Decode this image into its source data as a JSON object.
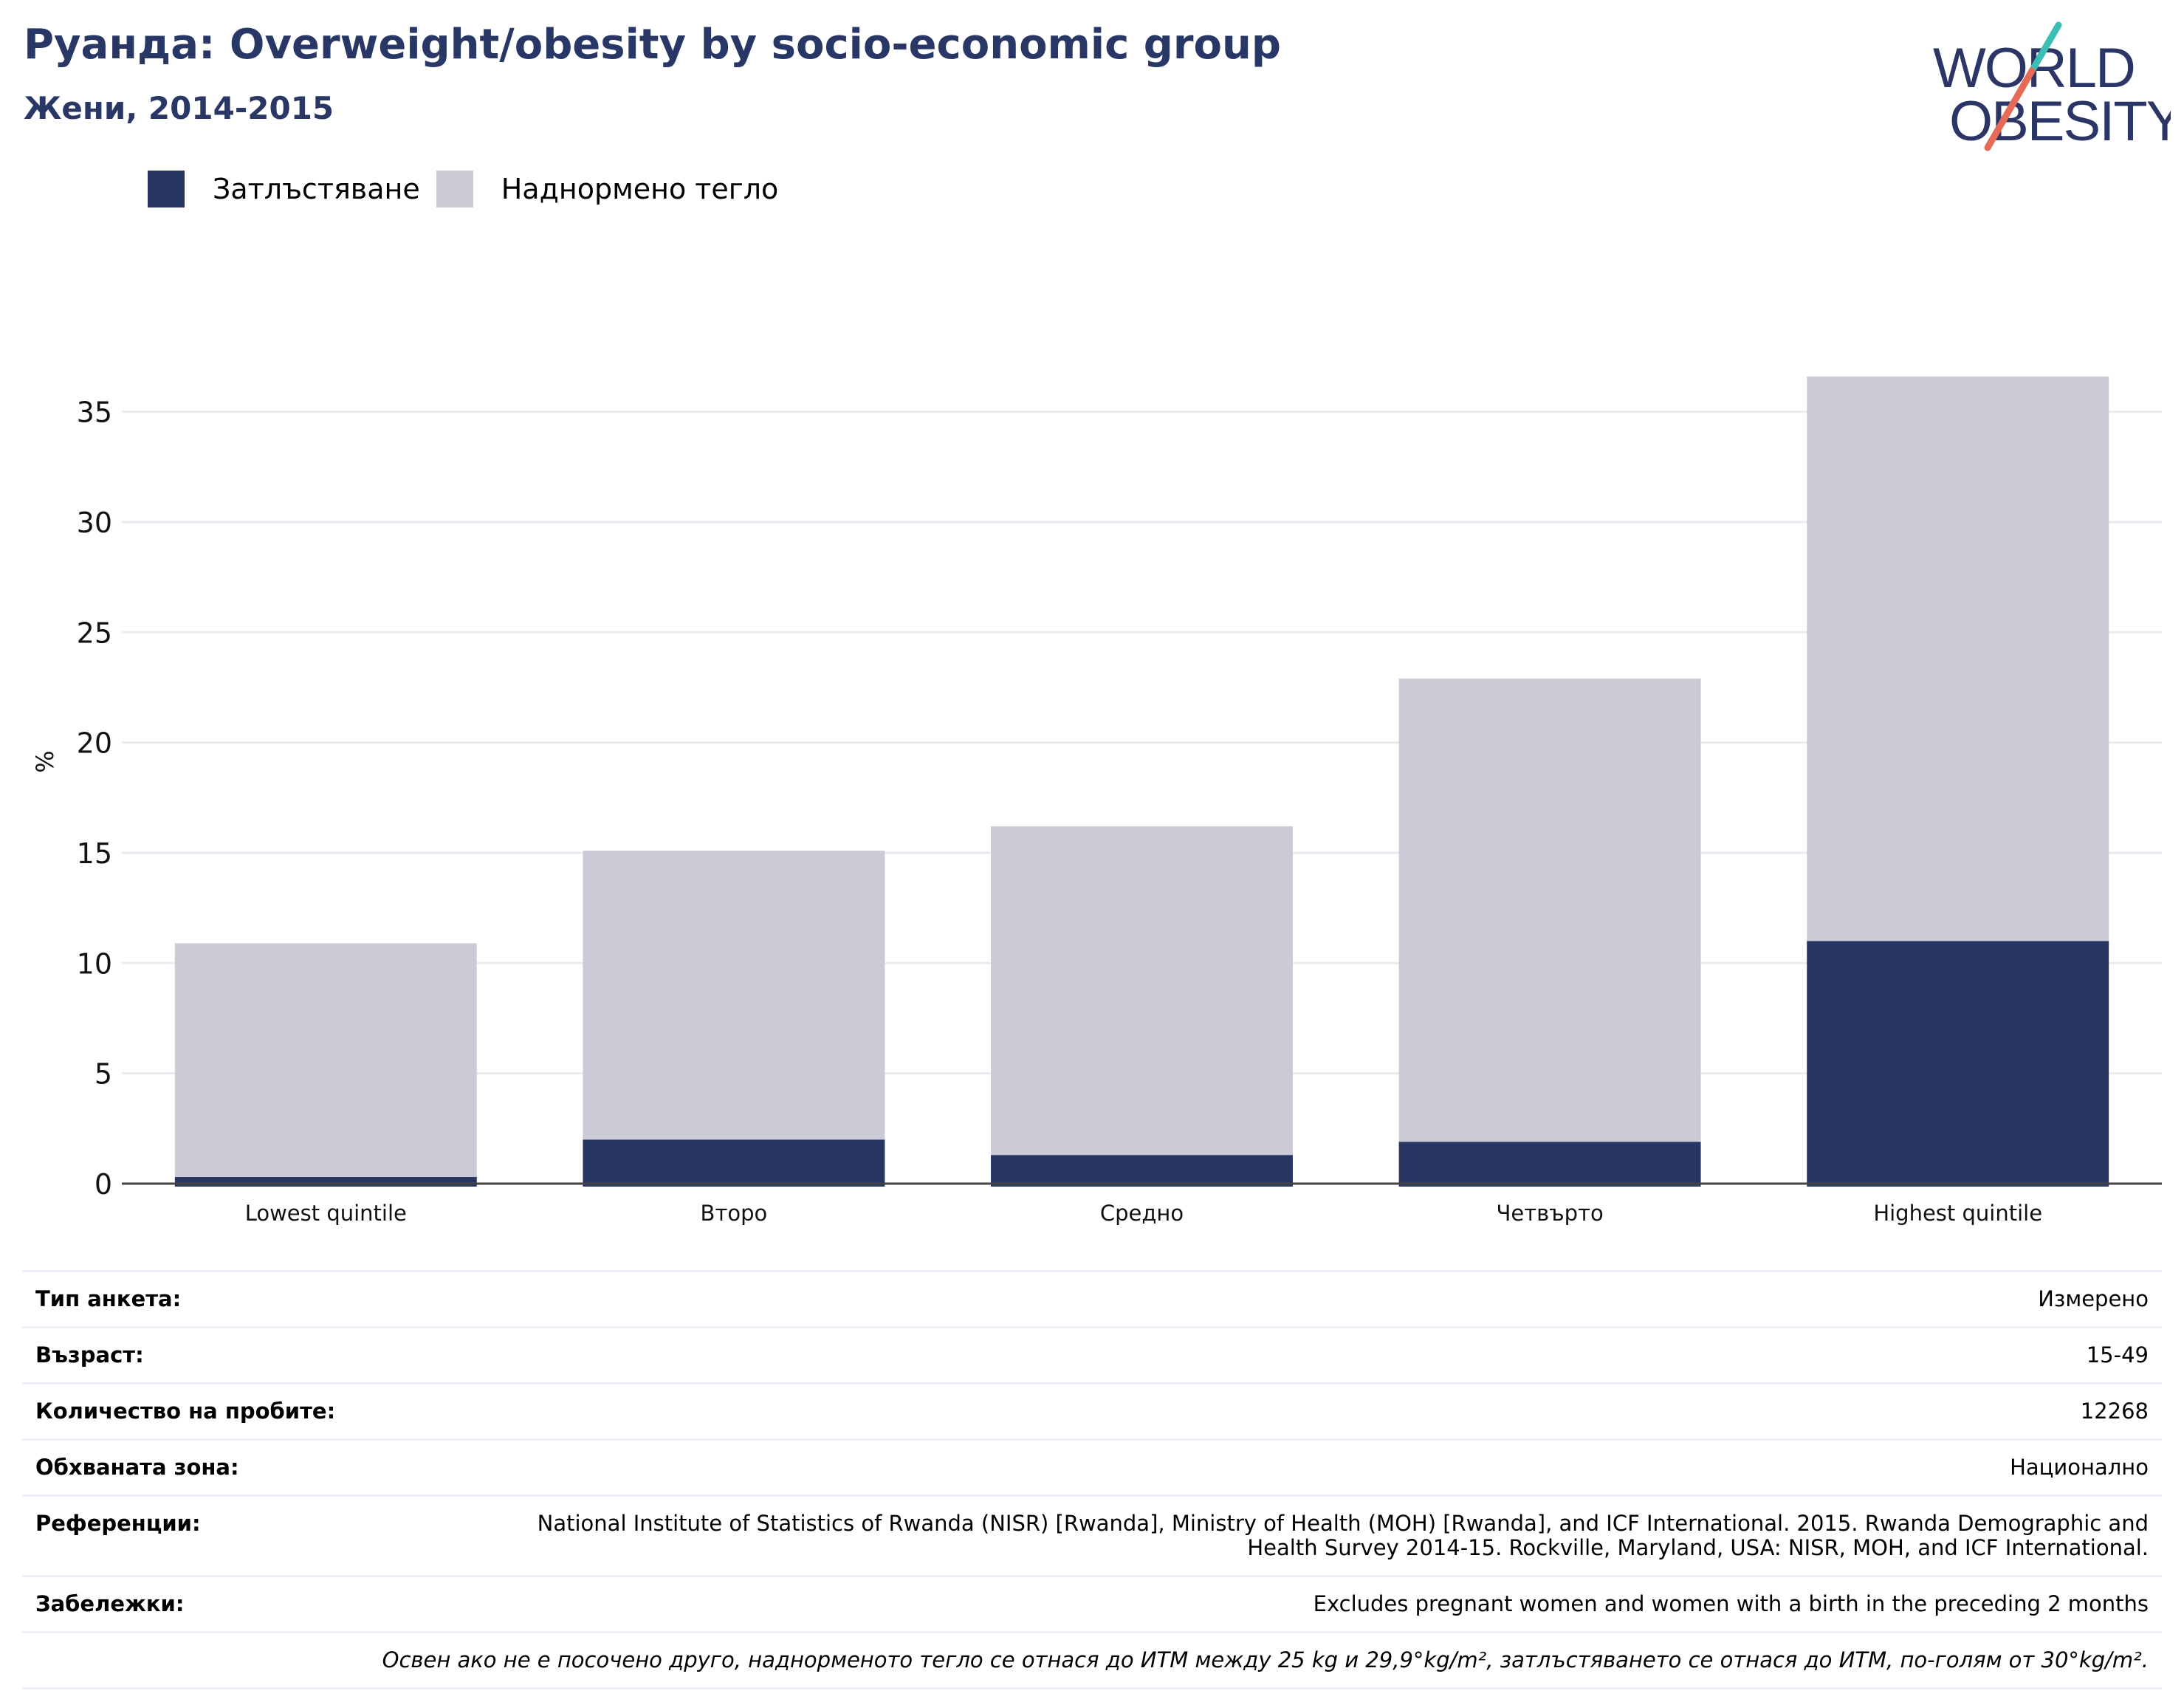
{
  "header": {
    "title": "Руанда: Overweight/obesity by socio-economic group",
    "subtitle": "Жени, 2014-2015"
  },
  "logo": {
    "line1": "WORLD",
    "line2": "OBESITY",
    "icon": "world-obesity-logo"
  },
  "colors": {
    "obesity": "#283563",
    "overweight": "#cacbd7",
    "title": "#283766",
    "grid": "#e9ebf0",
    "logo_teal": "#3bbfb5",
    "logo_red": "#e56b57"
  },
  "legend": {
    "items": [
      {
        "label": "Затлъстяване",
        "color": "#283563"
      },
      {
        "label": "Наднормено тегло",
        "color": "#cacbd7"
      }
    ]
  },
  "chart_data": {
    "type": "bar",
    "stacked": true,
    "categories": [
      "Lowest quintile",
      "Второ",
      "Средно",
      "Четвърто",
      "Highest quintile"
    ],
    "series": [
      {
        "name": "Затлъстяване",
        "values": [
          0.3,
          2.0,
          1.3,
          1.9,
          11.0
        ]
      },
      {
        "name": "Наднормено тегло",
        "values": [
          10.6,
          13.1,
          14.9,
          21.0,
          25.6
        ]
      }
    ],
    "totals": [
      10.9,
      15.1,
      16.2,
      22.9,
      36.6
    ],
    "ylabel": "%",
    "ylim": [
      0,
      38
    ],
    "yticks": [
      0,
      5,
      10,
      15,
      20,
      25,
      30,
      35
    ],
    "grid": true,
    "legend_position": "top-left"
  },
  "meta": {
    "rows": [
      {
        "label": "Тип анкета:",
        "value": "Измерено"
      },
      {
        "label": "Възраст:",
        "value": "15-49"
      },
      {
        "label": "Количество на пробите:",
        "value": "12268"
      },
      {
        "label": "Обхваната зона:",
        "value": "Национално"
      },
      {
        "label": "Референции:",
        "value": "National Institute of Statistics of Rwanda (NISR) [Rwanda], Ministry of Health (MOH) [Rwanda], and ICF International. 2015. Rwanda Demographic and Health Survey 2014-15. Rockville, Maryland, USA: NISR, MOH, and ICF International."
      },
      {
        "label": "Забележки:",
        "value": "Excludes pregnant women and women with a birth in the preceding 2 months"
      }
    ],
    "note": "Освен ако не е посочено друго, наднорменото тегло се отнася до ИТМ между 25 kg и 29,9°kg/m², затлъстяването се отнася до ИТМ, по-голям от 30°kg/m²."
  }
}
